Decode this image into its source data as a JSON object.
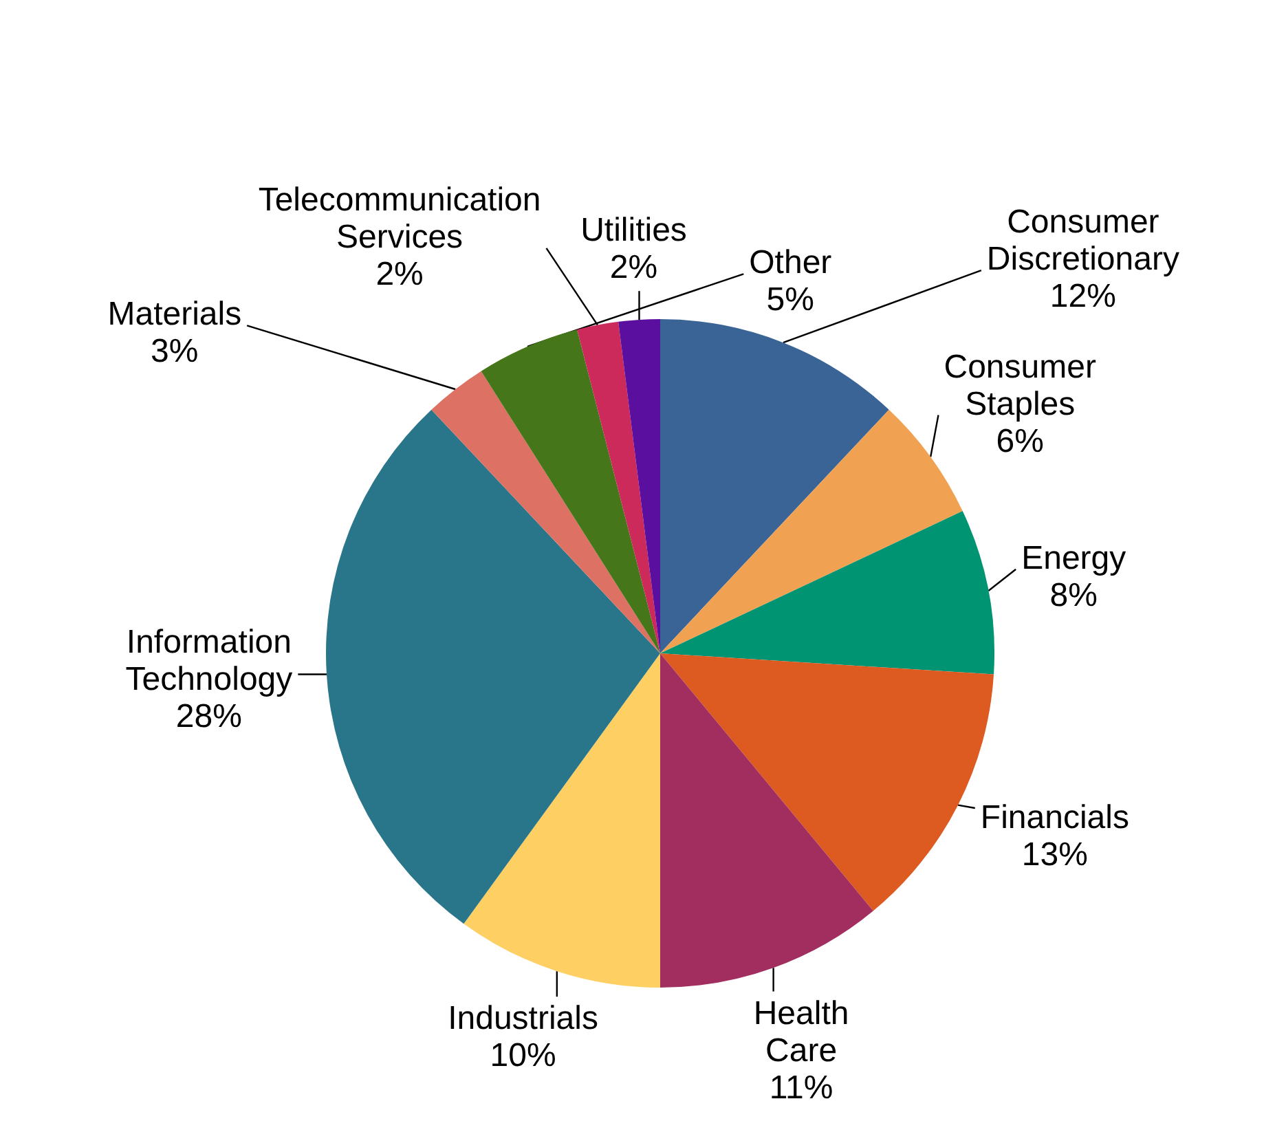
{
  "chart_data": {
    "type": "pie",
    "categories": [
      "Consumer Discretionary",
      "Consumer Staples",
      "Energy",
      "Financials",
      "Health Care",
      "Industrials",
      "Information Technology",
      "Materials",
      "Other",
      "Telecommunication Services",
      "Utilities"
    ],
    "values": [
      12,
      6,
      8,
      13,
      11,
      10,
      28,
      3,
      5,
      2,
      2
    ],
    "value_labels": [
      "12%",
      "6%",
      "8%",
      "13%",
      "11%",
      "10%",
      "28%",
      "3%",
      "5%",
      "2%",
      "2%"
    ],
    "colors": [
      "#3a6496",
      "#f0a252",
      "#009473",
      "#dd5a20",
      "#a22e5f",
      "#fecf63",
      "#29768a",
      "#dd7163",
      "#45761a",
      "#cc2a5a",
      "#5a0f9e"
    ]
  }
}
